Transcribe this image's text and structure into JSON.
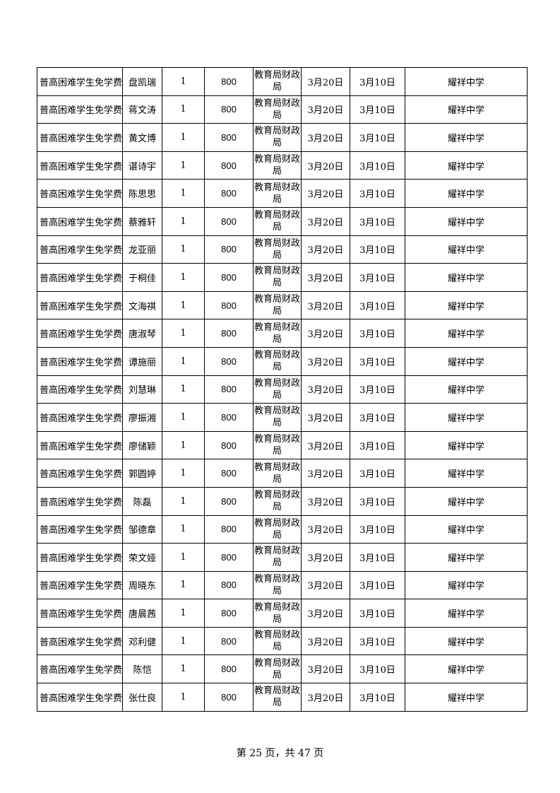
{
  "rows": [
    {
      "item": "普高困难学生免学费",
      "name": "盘凯瑞",
      "count": "1",
      "amount": "800",
      "dept": "教育局财政局",
      "date1": "3月20日",
      "date2": "3月10日",
      "school": "耀祥中学"
    },
    {
      "item": "普高困难学生免学费",
      "name": "蒋文涛",
      "count": "1",
      "amount": "800",
      "dept": "教育局财政局",
      "date1": "3月20日",
      "date2": "3月10日",
      "school": "耀祥中学"
    },
    {
      "item": "普高困难学生免学费",
      "name": "黄文博",
      "count": "1",
      "amount": "800",
      "dept": "教育局财政局",
      "date1": "3月20日",
      "date2": "3月10日",
      "school": "耀祥中学"
    },
    {
      "item": "普高困难学生免学费",
      "name": "谌诗宇",
      "count": "1",
      "amount": "800",
      "dept": "教育局财政局",
      "date1": "3月20日",
      "date2": "3月10日",
      "school": "耀祥中学"
    },
    {
      "item": "普高困难学生免学费",
      "name": "陈思思",
      "count": "1",
      "amount": "800",
      "dept": "教育局财政局",
      "date1": "3月20日",
      "date2": "3月10日",
      "school": "耀祥中学"
    },
    {
      "item": "普高困难学生免学费",
      "name": "蔡雅轩",
      "count": "1",
      "amount": "800",
      "dept": "教育局财政局",
      "date1": "3月20日",
      "date2": "3月10日",
      "school": "耀祥中学"
    },
    {
      "item": "普高困难学生免学费",
      "name": "龙亚丽",
      "count": "1",
      "amount": "800",
      "dept": "教育局财政局",
      "date1": "3月20日",
      "date2": "3月10日",
      "school": "耀祥中学"
    },
    {
      "item": "普高困难学生免学费",
      "name": "于桐佳",
      "count": "1",
      "amount": "800",
      "dept": "教育局财政局",
      "date1": "3月20日",
      "date2": "3月10日",
      "school": "耀祥中学"
    },
    {
      "item": "普高困难学生免学费",
      "name": "文海祺",
      "count": "1",
      "amount": "800",
      "dept": "教育局财政局",
      "date1": "3月20日",
      "date2": "3月10日",
      "school": "耀祥中学"
    },
    {
      "item": "普高困难学生免学费",
      "name": "唐淑琴",
      "count": "1",
      "amount": "800",
      "dept": "教育局财政局",
      "date1": "3月20日",
      "date2": "3月10日",
      "school": "耀祥中学"
    },
    {
      "item": "普高困难学生免学费",
      "name": "谭施丽",
      "count": "1",
      "amount": "800",
      "dept": "教育局财政局",
      "date1": "3月20日",
      "date2": "3月10日",
      "school": "耀祥中学"
    },
    {
      "item": "普高困难学生免学费",
      "name": "刘慧琳",
      "count": "1",
      "amount": "800",
      "dept": "教育局财政局",
      "date1": "3月20日",
      "date2": "3月10日",
      "school": "耀祥中学"
    },
    {
      "item": "普高困难学生免学费",
      "name": "廖振湘",
      "count": "1",
      "amount": "800",
      "dept": "教育局财政局",
      "date1": "3月20日",
      "date2": "3月10日",
      "school": "耀祥中学"
    },
    {
      "item": "普高困难学生免学费",
      "name": "廖储颖",
      "count": "1",
      "amount": "800",
      "dept": "教育局财政局",
      "date1": "3月20日",
      "date2": "3月10日",
      "school": "耀祥中学"
    },
    {
      "item": "普高困难学生免学费",
      "name": "郭圆婷",
      "count": "1",
      "amount": "800",
      "dept": "教育局财政局",
      "date1": "3月20日",
      "date2": "3月10日",
      "school": "耀祥中学"
    },
    {
      "item": "普高困难学生免学费",
      "name": "陈磊",
      "count": "1",
      "amount": "800",
      "dept": "教育局财政局",
      "date1": "3月20日",
      "date2": "3月10日",
      "school": "耀祥中学"
    },
    {
      "item": "普高困难学生免学费",
      "name": "邹德章",
      "count": "1",
      "amount": "800",
      "dept": "教育局财政局",
      "date1": "3月20日",
      "date2": "3月10日",
      "school": "耀祥中学"
    },
    {
      "item": "普高困难学生免学费",
      "name": "荣文娅",
      "count": "1",
      "amount": "800",
      "dept": "教育局财政局",
      "date1": "3月20日",
      "date2": "3月10日",
      "school": "耀祥中学"
    },
    {
      "item": "普高困难学生免学费",
      "name": "周晓东",
      "count": "1",
      "amount": "800",
      "dept": "教育局财政局",
      "date1": "3月20日",
      "date2": "3月10日",
      "school": "耀祥中学"
    },
    {
      "item": "普高困难学生免学费",
      "name": "唐晨茜",
      "count": "1",
      "amount": "800",
      "dept": "教育局财政局",
      "date1": "3月20日",
      "date2": "3月10日",
      "school": "耀祥中学"
    },
    {
      "item": "普高困难学生免学费",
      "name": "邓利健",
      "count": "1",
      "amount": "800",
      "dept": "教育局财政局",
      "date1": "3月20日",
      "date2": "3月10日",
      "school": "耀祥中学"
    },
    {
      "item": "普高困难学生免学费",
      "name": "陈恺",
      "count": "1",
      "amount": "800",
      "dept": "教育局财政局",
      "date1": "3月20日",
      "date2": "3月10日",
      "school": "耀祥中学"
    },
    {
      "item": "普高困难学生免学费",
      "name": "张仕良",
      "count": "1",
      "amount": "800",
      "dept": "教育局财政局",
      "date1": "3月20日",
      "date2": "3月10日",
      "school": "耀祥中学"
    }
  ],
  "footer": {
    "page_text": "第 25 页，共 47 页"
  }
}
